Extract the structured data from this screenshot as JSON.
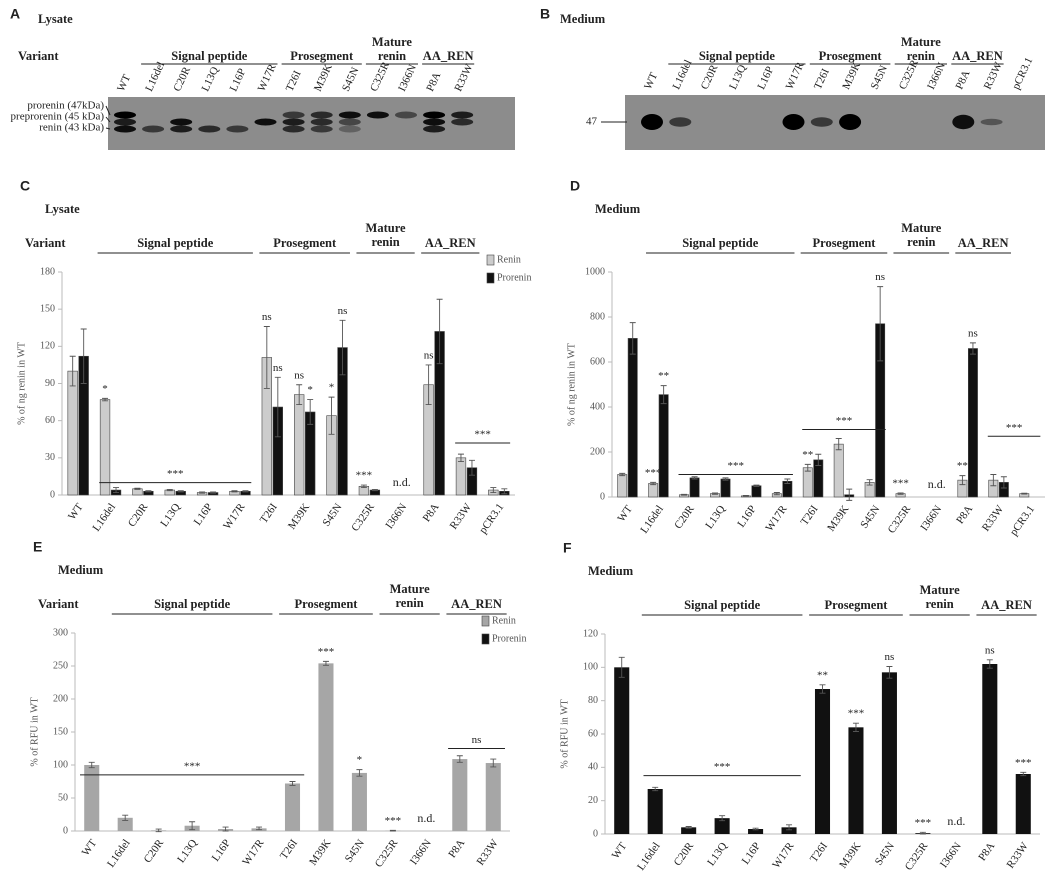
{
  "blots": [
    {
      "letter": "A",
      "title": "Lysate",
      "variant_label": "Variant",
      "groups": [
        {
          "label": "Signal peptide",
          "first": "L16del",
          "last": "W17R"
        },
        {
          "label": "Prosegment",
          "first": "T26I",
          "last": "S45N"
        },
        {
          "label": "Mature renin",
          "first": "C325R",
          "last": "I366N"
        },
        {
          "label": "AA_REN",
          "first": "P8A",
          "last": "R33W"
        }
      ],
      "lanes": [
        "WT",
        "L16del",
        "C20R",
        "L13Q",
        "L16P",
        "W17R",
        "T26I",
        "M39K",
        "S45N",
        "C325R",
        "I366N",
        "P8A",
        "R33W"
      ],
      "markers": [
        "prorenin (47kDa)",
        "preprorenin (45 kDa)",
        "renin (43 kDa)"
      ]
    },
    {
      "letter": "B",
      "title": "Medium",
      "groups": [
        {
          "label": "Signal peptide",
          "first": "L16del",
          "last": "W17R"
        },
        {
          "label": "Prosegment",
          "first": "T26I",
          "last": "S45N"
        },
        {
          "label": "Mature renin",
          "first": "C325R",
          "last": "I366N"
        },
        {
          "label": "AA_REN",
          "first": "P8A",
          "last": "R33W"
        }
      ],
      "lanes": [
        "WT",
        "L16del",
        "C20R",
        "L13Q",
        "L16P",
        "W17R",
        "T26I",
        "M39K",
        "S45N",
        "C325R",
        "I366N",
        "P8A",
        "R33W",
        "pCR3.1"
      ],
      "markers": [
        "47"
      ]
    }
  ],
  "chart_data": [
    {
      "type": "bar",
      "letter": "C",
      "title": "Lysate",
      "variant_label": "Variant",
      "ylabel": "% of ng renin in WT",
      "categories": [
        "WT",
        "L16del",
        "C20R",
        "L13Q",
        "L16P",
        "W17R",
        "T26I",
        "M39K",
        "S45N",
        "C325R",
        "I366N",
        "P8A",
        "R33W",
        "pCR3.1"
      ],
      "series": [
        {
          "name": "Renin",
          "color": "#cccccc",
          "values": [
            100,
            77,
            5,
            4,
            2,
            3,
            111,
            81,
            64,
            7,
            null,
            89,
            30,
            4
          ],
          "errors": [
            12,
            1,
            0.5,
            0.5,
            0.5,
            0.5,
            25,
            8,
            15,
            1,
            null,
            16,
            3,
            2
          ],
          "significance": [
            null,
            "*",
            null,
            null,
            null,
            null,
            "ns",
            "ns",
            "*",
            "***",
            null,
            "ns",
            null,
            null
          ]
        },
        {
          "name": "Prorenin",
          "color": "#111111",
          "values": [
            112,
            4,
            3,
            3,
            2,
            3,
            71,
            67,
            119,
            4,
            null,
            132,
            22,
            3
          ],
          "errors": [
            22,
            2,
            0.5,
            0.5,
            0.5,
            0.5,
            24,
            10,
            22,
            0.5,
            null,
            26,
            6,
            2
          ],
          "significance": [
            null,
            null,
            null,
            null,
            null,
            null,
            "ns",
            "*",
            "ns",
            null,
            null,
            null,
            null,
            null
          ]
        }
      ],
      "ylim": [
        0,
        180
      ],
      "yticks": [
        0,
        30,
        60,
        90,
        120,
        150,
        180
      ],
      "legend": "upper right",
      "groups": [
        {
          "label": "Signal peptide",
          "first": "L16del",
          "last": "W17R"
        },
        {
          "label": "Prosegment",
          "first": "T26I",
          "last": "S45N"
        },
        {
          "label": "Mature renin",
          "first": "C325R",
          "last": "I366N"
        },
        {
          "label": "AA_REN",
          "first": "P8A",
          "last": "R33W"
        }
      ],
      "brackets": [
        {
          "label": "***",
          "level": 10,
          "first": "L16del",
          "last": "W17R"
        },
        {
          "label": "***",
          "level": 42,
          "first": "R33W",
          "last": "pCR3.1"
        }
      ],
      "notes": [
        {
          "label": "n.d.",
          "category": "I366N"
        }
      ]
    },
    {
      "type": "bar",
      "letter": "D",
      "title": "Medium",
      "ylabel": "% of ng renin in WT",
      "categories": [
        "WT",
        "L16del",
        "C20R",
        "L13Q",
        "L16P",
        "W17R",
        "T26I",
        "M39K",
        "S45N",
        "C325R",
        "I366N",
        "P8A",
        "R33W",
        "pCR3.1"
      ],
      "series": [
        {
          "name": "Renin",
          "color": "#cccccc",
          "values": [
            100,
            60,
            10,
            15,
            5,
            15,
            130,
            235,
            65,
            15,
            null,
            75,
            75,
            15
          ],
          "errors": [
            5,
            5,
            2,
            3,
            2,
            5,
            15,
            25,
            12,
            3,
            null,
            20,
            25,
            2
          ],
          "significance": [
            null,
            "***",
            null,
            null,
            null,
            null,
            "**",
            null,
            null,
            "***",
            null,
            "**",
            null,
            null
          ]
        },
        {
          "name": "Prorenin",
          "color": "#111111",
          "values": [
            705,
            455,
            85,
            80,
            50,
            70,
            165,
            10,
            770,
            null,
            null,
            660,
            65,
            null
          ],
          "errors": [
            70,
            40,
            5,
            5,
            3,
            10,
            25,
            25,
            165,
            null,
            null,
            25,
            25,
            null
          ],
          "significance": [
            null,
            "**",
            null,
            null,
            null,
            null,
            null,
            null,
            "ns",
            null,
            null,
            "ns",
            null,
            null
          ]
        }
      ],
      "ylim": [
        0,
        1000
      ],
      "yticks": [
        0,
        200,
        400,
        600,
        800,
        1000
      ],
      "groups": [
        {
          "label": "Signal peptide",
          "first": "L16del",
          "last": "W17R"
        },
        {
          "label": "Prosegment",
          "first": "T26I",
          "last": "S45N"
        },
        {
          "label": "Mature renin",
          "first": "C325R",
          "last": "I366N"
        },
        {
          "label": "AA_REN",
          "first": "P8A",
          "last": "R33W"
        }
      ],
      "brackets": [
        {
          "label": "***",
          "level": 100,
          "first": "C20R",
          "last": "W17R"
        },
        {
          "label": "***",
          "level": 300,
          "first": "T26I",
          "last": "S45N"
        },
        {
          "label": "***",
          "level": 270,
          "first": "R33W",
          "last": "pCR3.1"
        }
      ],
      "notes": [
        {
          "label": "n.d.",
          "category": "I366N"
        }
      ]
    },
    {
      "type": "bar",
      "letter": "E",
      "title": "Medium",
      "variant_label": "Variant",
      "ylabel": "% of RFU in WT",
      "categories": [
        "WT",
        "L16del",
        "C20R",
        "L13Q",
        "L16P",
        "W17R",
        "T26I",
        "M39K",
        "S45N",
        "C325R",
        "I366N",
        "P8A",
        "R33W"
      ],
      "series": [
        {
          "name": "Renin",
          "color": "#a6a6a6",
          "values": [
            100,
            20,
            1,
            8,
            3,
            4,
            72,
            254,
            88,
            0.5,
            null,
            109,
            103
          ],
          "errors": [
            4,
            4,
            2,
            6,
            3,
            2,
            3,
            3,
            5,
            0.5,
            null,
            5,
            6
          ],
          "significance": [
            null,
            null,
            null,
            null,
            null,
            null,
            null,
            "***",
            "*",
            "***",
            null,
            null,
            null
          ]
        },
        {
          "name": "Prorenin",
          "color": "#111111",
          "values": [
            null,
            null,
            null,
            null,
            null,
            null,
            null,
            null,
            null,
            null,
            null,
            null,
            null
          ]
        }
      ],
      "ylim": [
        0,
        300
      ],
      "yticks": [
        0,
        50,
        100,
        150,
        200,
        250,
        300
      ],
      "legend": "upper right",
      "groups": [
        {
          "label": "Signal peptide",
          "first": "L16del",
          "last": "W17R"
        },
        {
          "label": "Prosegment",
          "first": "T26I",
          "last": "S45N"
        },
        {
          "label": "Mature renin",
          "first": "C325R",
          "last": "I366N"
        },
        {
          "label": "AA_REN",
          "first": "P8A",
          "last": "R33W"
        }
      ],
      "brackets": [
        {
          "label": "***",
          "level": 85,
          "first": "WT",
          "last": "T26I"
        },
        {
          "label": "ns",
          "level": 125,
          "first": "P8A",
          "last": "R33W"
        }
      ],
      "notes": [
        {
          "label": "n.d.",
          "category": "I366N"
        }
      ]
    },
    {
      "type": "bar",
      "letter": "F",
      "title": "Medium",
      "ylabel": "% of RFU in WT",
      "categories": [
        "WT",
        "L16del",
        "C20R",
        "L13Q",
        "L16P",
        "W17R",
        "T26I",
        "M39K",
        "S45N",
        "C325R",
        "I366N",
        "P8A",
        "R33W"
      ],
      "series": [
        {
          "name": "Prorenin",
          "color": "#111111",
          "values": [
            100,
            27,
            4,
            9.5,
            3,
            4,
            87,
            64,
            97,
            0.5,
            null,
            102,
            36
          ],
          "errors": [
            6,
            1,
            0.5,
            1.5,
            0.5,
            1.5,
            2.5,
            2.5,
            3.5,
            0.5,
            null,
            2.5,
            1
          ],
          "significance": [
            null,
            null,
            null,
            null,
            null,
            null,
            "**",
            "***",
            "ns",
            "***",
            null,
            "ns",
            "***"
          ]
        }
      ],
      "ylim": [
        0,
        120
      ],
      "yticks": [
        0,
        20,
        40,
        60,
        80,
        100,
        120
      ],
      "groups": [
        {
          "label": "Signal peptide",
          "first": "L16del",
          "last": "W17R"
        },
        {
          "label": "Prosegment",
          "first": "T26I",
          "last": "S45N"
        },
        {
          "label": "Mature renin",
          "first": "C325R",
          "last": "I366N"
        },
        {
          "label": "AA_REN",
          "first": "P8A",
          "last": "R33W"
        }
      ],
      "brackets": [
        {
          "label": "***",
          "level": 35,
          "first": "L16del",
          "last": "W17R"
        }
      ],
      "notes": [
        {
          "label": "n.d.",
          "category": "I366N"
        }
      ]
    }
  ]
}
